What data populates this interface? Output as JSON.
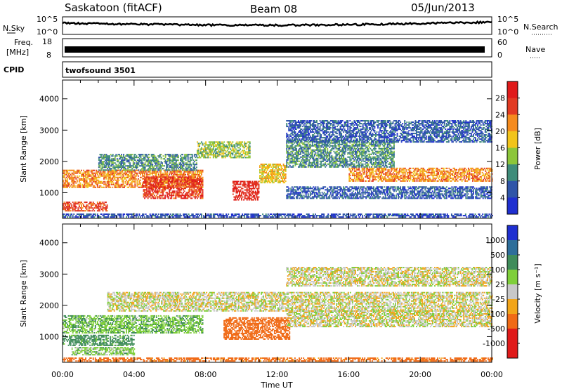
{
  "header": {
    "station": "Saskatoon (fitACF)",
    "beam": "Beam 08",
    "date": "05/Jun/2013"
  },
  "summary_panels": {
    "nsky": {
      "label": "N.Sky",
      "tick_top": "10^5",
      "tick_bottom": "10^0"
    },
    "nsearch": {
      "label": "N.Search",
      "tick_top": "10^5",
      "tick_bottom": "10^0"
    },
    "freq": {
      "label_line1": "Freq.",
      "label_line2": "[MHz]",
      "tick_top": "18",
      "tick_bottom": "8"
    },
    "nave": {
      "label": "Nave",
      "tick_top": "60",
      "tick_bottom": "0"
    },
    "cpid": {
      "label": "CPID",
      "value": "twofsound 3501"
    }
  },
  "chart_data": [
    {
      "type": "heatmap",
      "title": "",
      "quantity": "Power",
      "xlabel": "",
      "ylabel": "Slant Range [km]",
      "xlim": [
        "00:00",
        "24:00"
      ],
      "ylim": [
        180,
        4600
      ],
      "x_ticks": [
        "00:00",
        "04:00",
        "08:00",
        "12:00",
        "16:00",
        "20:00",
        "00:00"
      ],
      "y_ticks": [
        1000,
        2000,
        3000,
        4000
      ],
      "colorbar": {
        "label": "Power [dB]",
        "ticks": [
          "4",
          "8",
          "12",
          "16",
          "20",
          "24",
          "28"
        ],
        "colors": [
          "#1f2fd0",
          "#2f55a8",
          "#3f8c7a",
          "#8cc63a",
          "#f2c41a",
          "#f58b1e",
          "#e23a22",
          "#e01a1a"
        ]
      },
      "regions": [
        {
          "t0": 0.0,
          "t1": 7.8,
          "r0": 1150,
          "r1": 1700,
          "value": 22
        },
        {
          "t0": 0.0,
          "t1": 2.5,
          "r0": 400,
          "r1": 700,
          "value": 26
        },
        {
          "t0": 4.5,
          "t1": 7.8,
          "r0": 800,
          "r1": 1500,
          "value": 27
        },
        {
          "t0": 2.0,
          "t1": 7.5,
          "r0": 1700,
          "r1": 2200,
          "value": 10
        },
        {
          "t0": 9.5,
          "t1": 11.0,
          "r0": 750,
          "r1": 1350,
          "value": 28
        },
        {
          "t0": 11.0,
          "t1": 12.5,
          "r0": 1300,
          "r1": 1900,
          "value": 18
        },
        {
          "t0": 7.5,
          "t1": 10.5,
          "r0": 2100,
          "r1": 2600,
          "value": 14
        },
        {
          "t0": 12.5,
          "t1": 18.5,
          "r0": 1800,
          "r1": 2700,
          "value": 10
        },
        {
          "t0": 16.0,
          "t1": 24.0,
          "r0": 1350,
          "r1": 1800,
          "value": 22
        },
        {
          "t0": 12.5,
          "t1": 24.0,
          "r0": 2600,
          "r1": 3300,
          "value": 6
        },
        {
          "t0": 0.0,
          "t1": 24.0,
          "r0": 200,
          "r1": 320,
          "value": 5
        },
        {
          "t0": 12.5,
          "t1": 24.0,
          "r0": 800,
          "r1": 1200,
          "value": 6
        }
      ]
    },
    {
      "type": "heatmap",
      "title": "",
      "quantity": "Velocity",
      "xlabel": "Time UT",
      "ylabel": "Slant Range [km]",
      "xlim": [
        "00:00",
        "24:00"
      ],
      "ylim": [
        180,
        4600
      ],
      "x_ticks": [
        "00:00",
        "04:00",
        "08:00",
        "12:00",
        "16:00",
        "20:00",
        "00:00"
      ],
      "y_ticks": [
        1000,
        2000,
        3000,
        4000
      ],
      "colorbar": {
        "label": "Velocity [m s⁻¹]",
        "ticks": [
          "1000",
          "500",
          "100",
          "25",
          "-25",
          "-100",
          "-500",
          "-1000"
        ],
        "colors": [
          "#1f2fd0",
          "#2e6e9a",
          "#3f8c5a",
          "#7fcf3a",
          "#c8c8c8",
          "#f2a51a",
          "#f06a16",
          "#e01a1a",
          "#e01a1a"
        ]
      },
      "regions": [
        {
          "t0": 0.0,
          "t1": 7.8,
          "r0": 1100,
          "r1": 1650,
          "value": 80
        },
        {
          "t0": 0.0,
          "t1": 4.0,
          "r0": 700,
          "r1": 1050,
          "value": 150
        },
        {
          "t0": 0.5,
          "t1": 4.0,
          "r0": 400,
          "r1": 650,
          "value": 60
        },
        {
          "t0": 9.0,
          "t1": 12.7,
          "r0": 900,
          "r1": 1600,
          "value": -300
        },
        {
          "t0": 2.5,
          "t1": 24.0,
          "r0": 1800,
          "r1": 2400,
          "value": 0
        },
        {
          "t0": 12.5,
          "t1": 24.0,
          "r0": 1300,
          "r1": 1800,
          "value": 0
        },
        {
          "t0": 12.5,
          "t1": 24.0,
          "r0": 2600,
          "r1": 3200,
          "value": 0
        },
        {
          "t0": 0.0,
          "t1": 24.0,
          "r0": 200,
          "r1": 320,
          "value": -150
        }
      ]
    }
  ],
  "x_axis_title": "Time UT"
}
